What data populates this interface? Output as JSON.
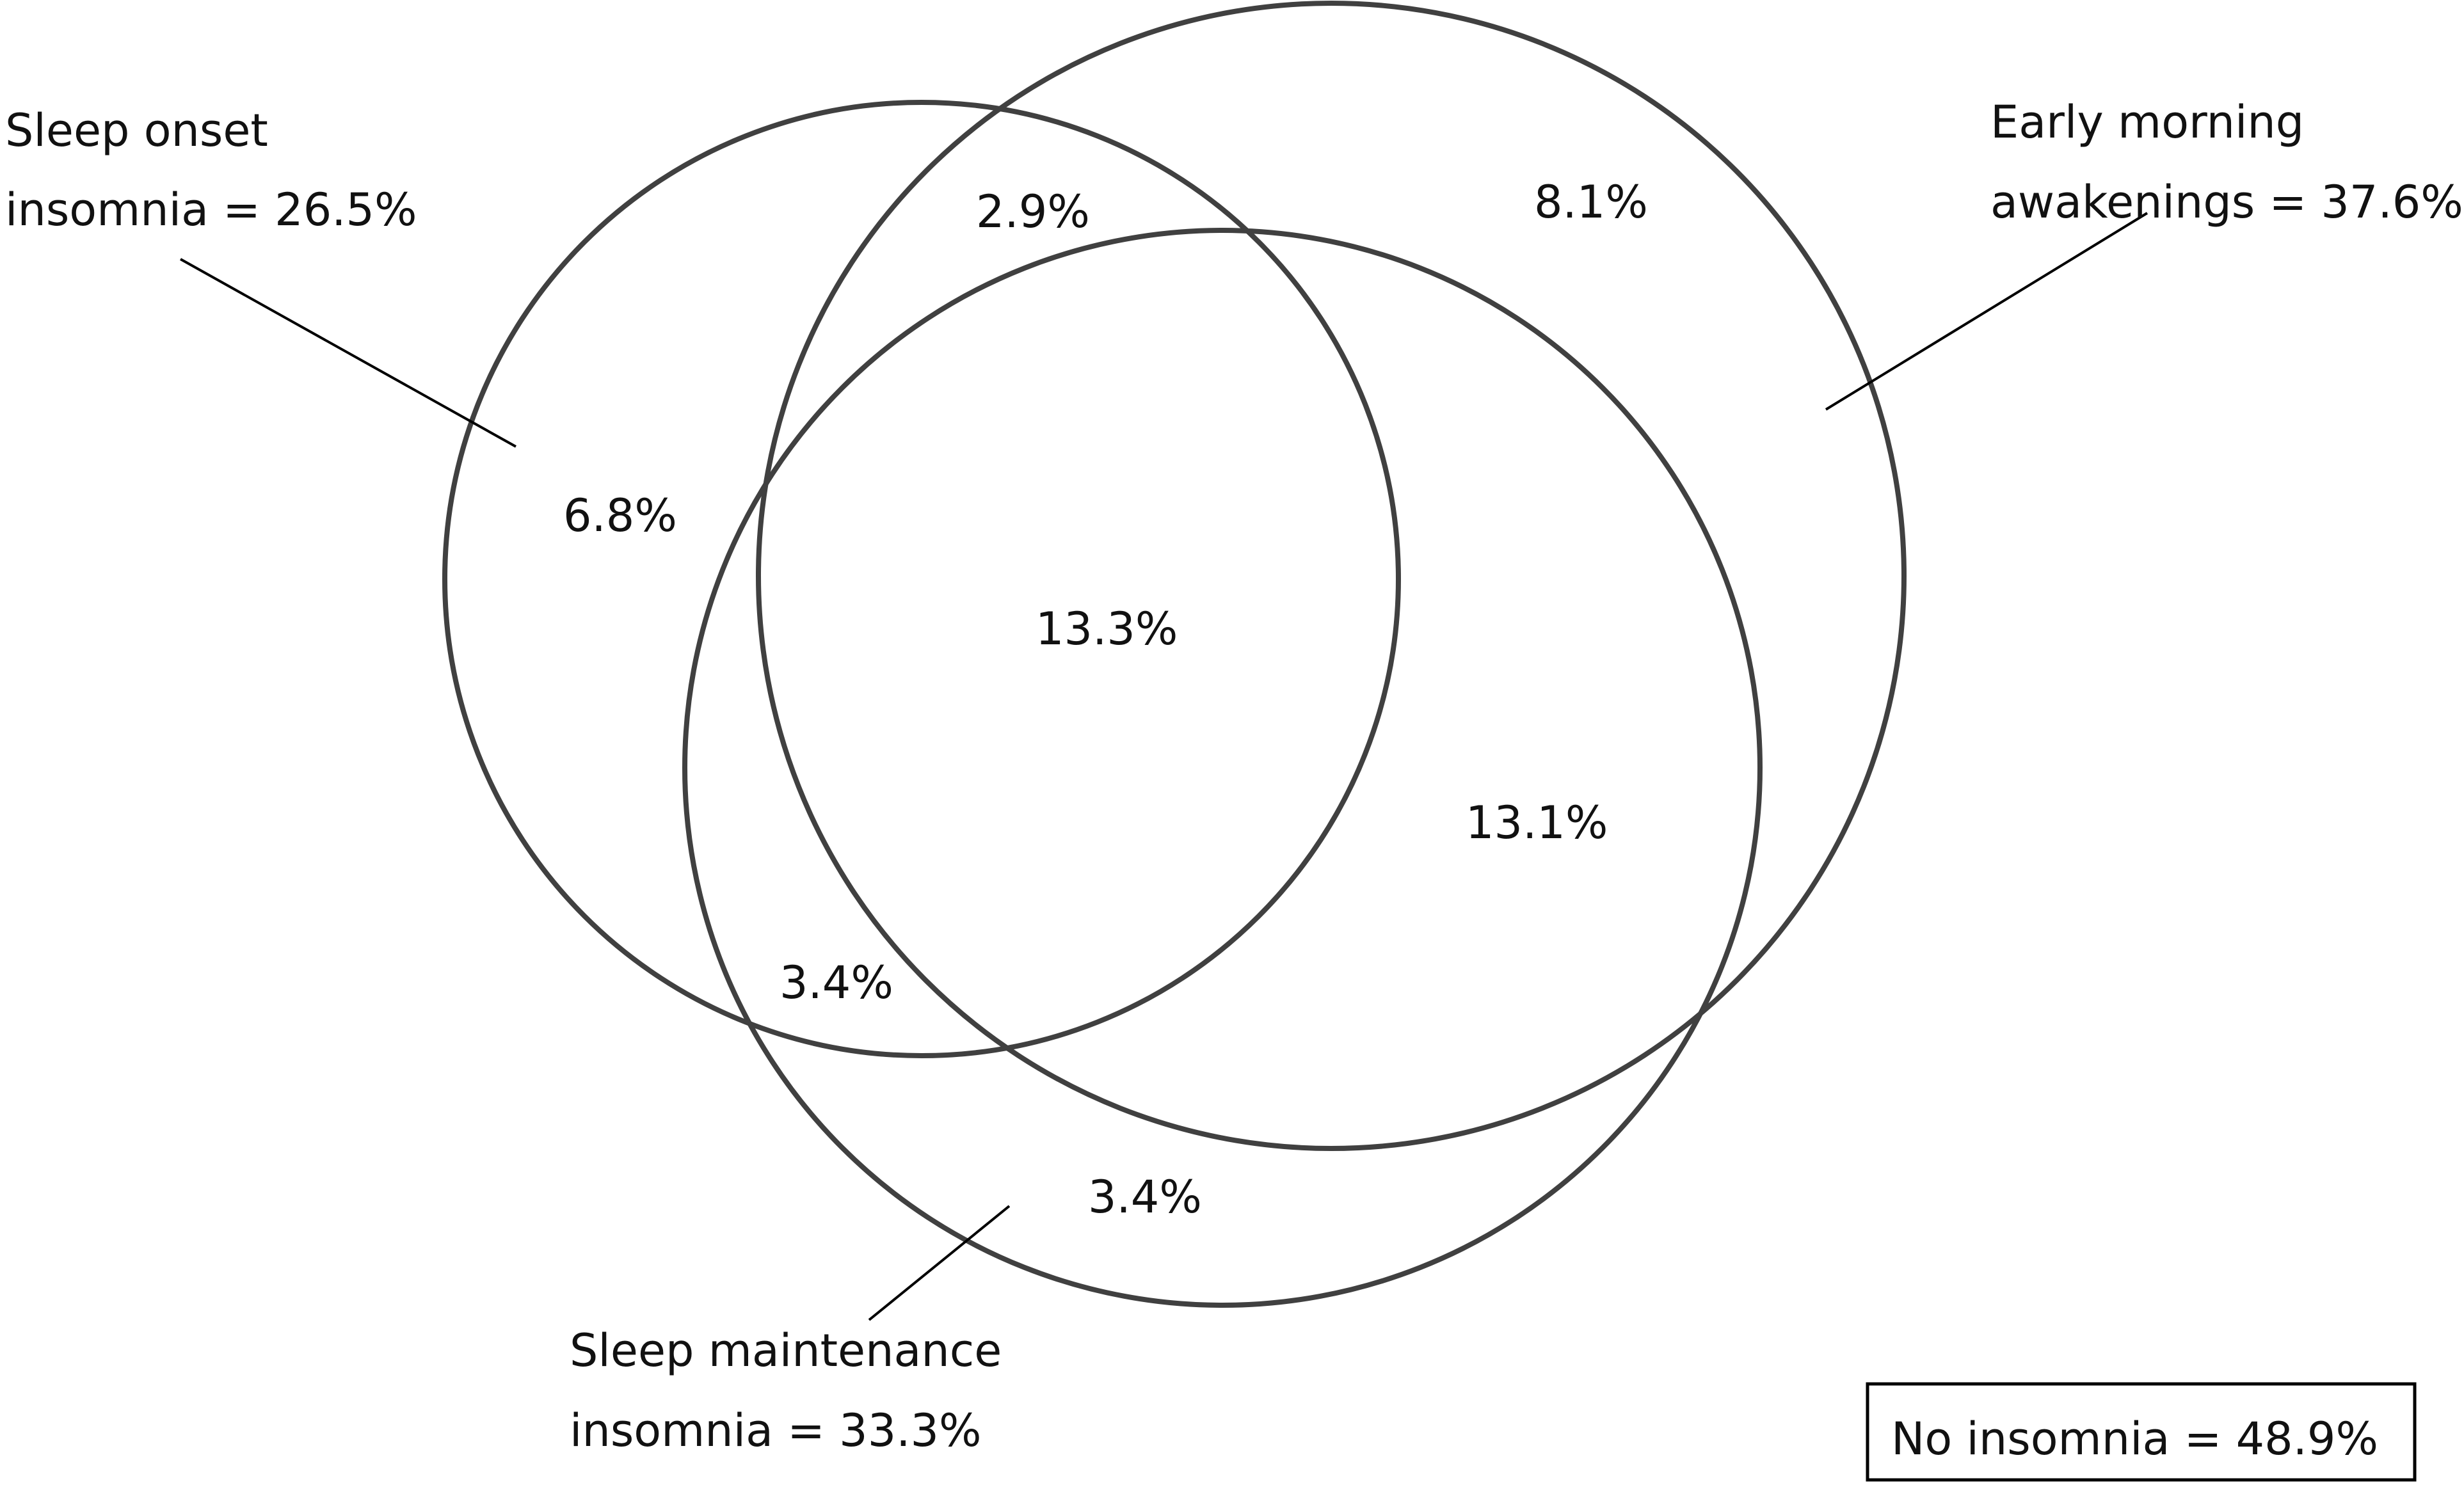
{
  "sets": {
    "sleep_onset": {
      "line1": "Sleep onset",
      "line2": "insomnia = 26.5%"
    },
    "early_morning": {
      "line1": "Early morning",
      "line2": "awakenings = 37.6%"
    },
    "sleep_maintenance": {
      "line1": "Sleep maintenance",
      "line2": "insomnia = 33.3%"
    }
  },
  "regions": {
    "onset_only": "6.8%",
    "onset_early": "2.9%",
    "early_only": "8.1%",
    "all_three": "13.3%",
    "early_maintenance": "13.1%",
    "onset_maintenance": "3.4%",
    "maintenance_only": "3.4%"
  },
  "no_insomnia": "No insomnia = 48.9%",
  "colors": {
    "circle_stroke": "#404040",
    "text": "#111111",
    "background": "#ffffff"
  }
}
